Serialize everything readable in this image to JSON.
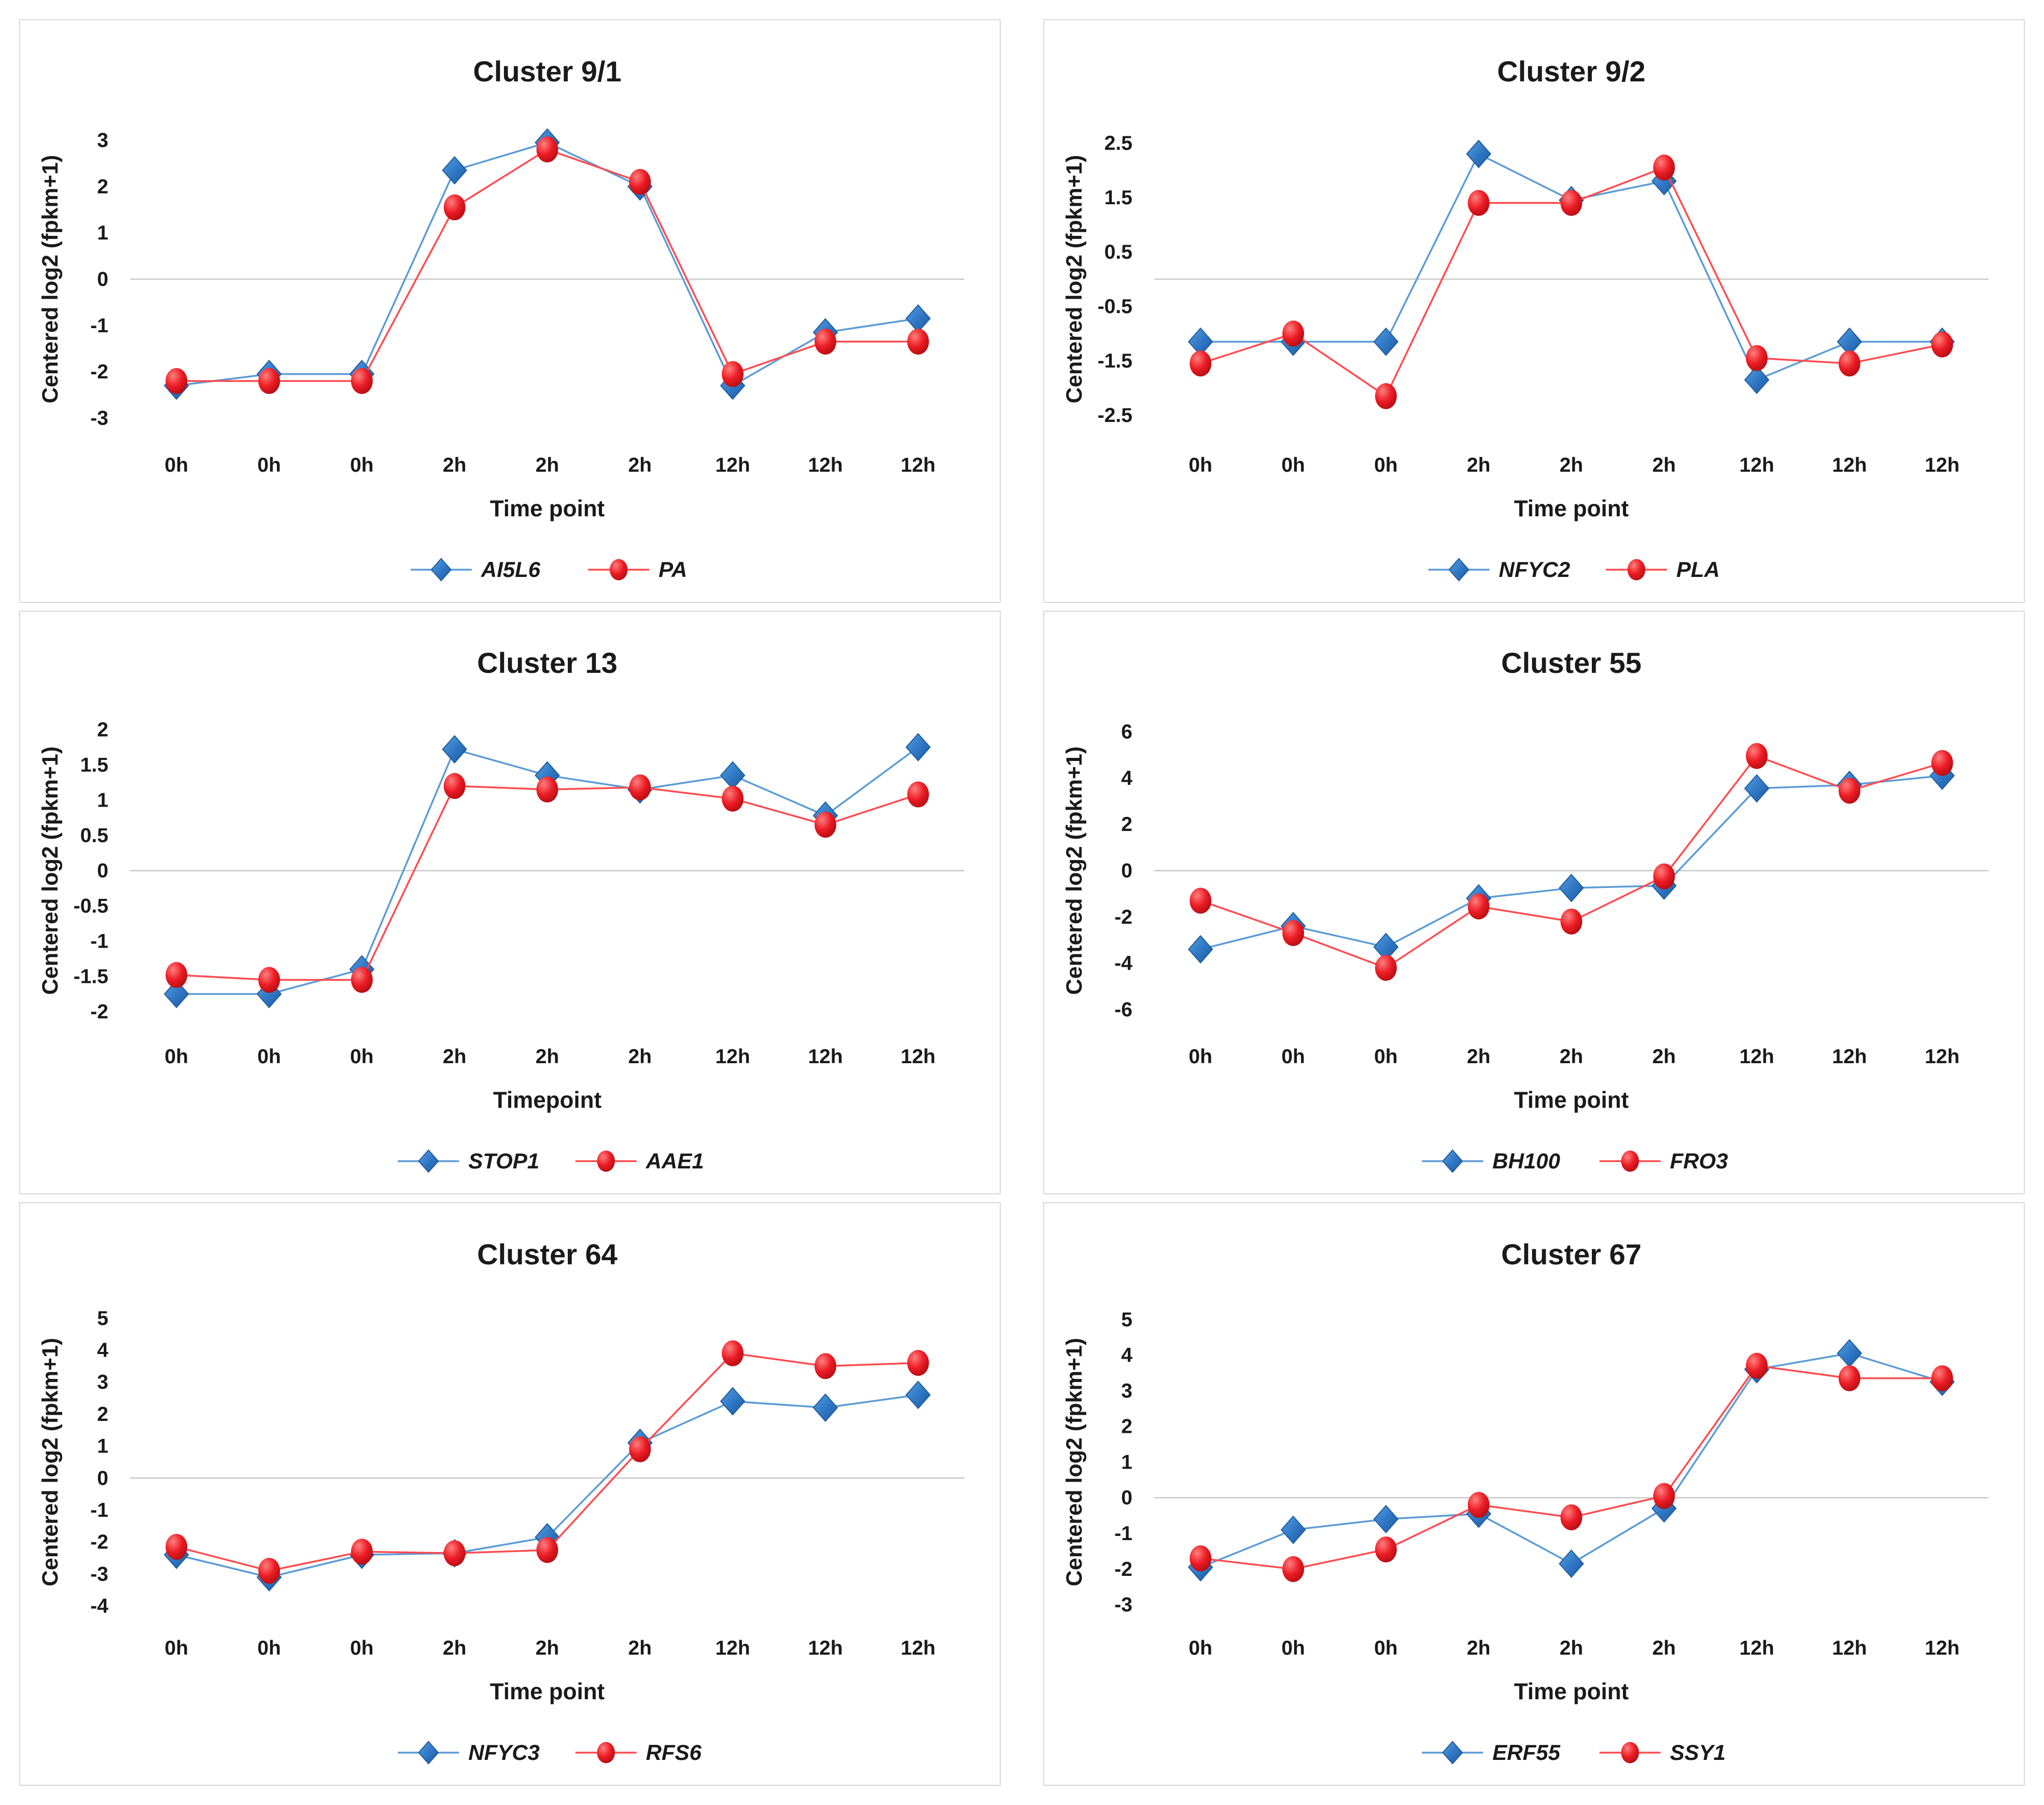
{
  "figure": {
    "background": "#ffffff",
    "panel_border_color": "#d9d9d9",
    "layout": "2x3-grid"
  },
  "colors": {
    "blue_line": "#5b9bd5",
    "blue_marker": "#2e75c3",
    "blue_marker_light": "#55a0e0",
    "blue_marker_dark": "#1f5c9e",
    "red_line": "#ff4b4f",
    "red_marker": "#ec1c24",
    "red_marker_light": "#ff8080",
    "red_marker_dark": "#b50d13",
    "zero_line": "#c8c8c8",
    "text": "#1a1a1a"
  },
  "chart_data": [
    {
      "type": "line",
      "title": "Cluster 9/1",
      "xlabel": "Time point",
      "ylabel": "Centered log2 (fpkm+1)",
      "categories": [
        "0h",
        "0h",
        "0h",
        "2h",
        "2h",
        "2h",
        "12h",
        "12h",
        "12h"
      ],
      "yticks": [
        3,
        2,
        1,
        0,
        -1,
        -2,
        -3
      ],
      "ylim": [
        -3.35,
        3.35
      ],
      "grid": "zero-line-only",
      "legend_position": "bottom",
      "series": [
        {
          "name": "AI5L6",
          "marker": "diamond",
          "values": [
            -2.3,
            -2.05,
            -2.05,
            2.35,
            2.95,
            2.0,
            -2.3,
            -1.15,
            -0.85
          ]
        },
        {
          "name": "PA",
          "marker": "circle",
          "values": [
            -2.2,
            -2.2,
            -2.2,
            1.55,
            2.8,
            2.1,
            -2.05,
            -1.35,
            -1.35
          ]
        }
      ]
    },
    {
      "type": "line",
      "title": "Cluster 9/2",
      "xlabel": "Time point",
      "ylabel": "Centered log2 (fpkm+1)",
      "categories": [
        "0h",
        "0h",
        "0h",
        "2h",
        "2h",
        "2h",
        "12h",
        "12h",
        "12h"
      ],
      "yticks": [
        2.5,
        1.5,
        0.5,
        -0.5,
        -1.5,
        -2.5
      ],
      "ylim": [
        -2.85,
        2.85
      ],
      "grid": "zero-line-only",
      "legend_position": "bottom",
      "series": [
        {
          "name": "NFYC2",
          "marker": "diamond",
          "values": [
            -1.15,
            -1.15,
            -1.15,
            2.3,
            1.45,
            1.8,
            -1.85,
            -1.15,
            -1.15
          ]
        },
        {
          "name": "PLA",
          "marker": "circle",
          "values": [
            -1.55,
            -1.0,
            -2.15,
            1.4,
            1.4,
            2.05,
            -1.45,
            -1.55,
            -1.2
          ]
        }
      ]
    },
    {
      "type": "line",
      "title": "Cluster 13",
      "xlabel": "Timepoint",
      "ylabel": "Centered log2 (fpkm+1)",
      "categories": [
        "0h",
        "0h",
        "0h",
        "2h",
        "2h",
        "2h",
        "12h",
        "12h",
        "12h"
      ],
      "yticks": [
        2,
        1.5,
        1,
        0.5,
        0,
        -0.5,
        -1,
        -1.5,
        -2
      ],
      "ylim": [
        -2.2,
        2.2
      ],
      "grid": "zero-line-only",
      "legend_position": "bottom",
      "series": [
        {
          "name": "STOP1",
          "marker": "diamond",
          "values": [
            -1.75,
            -1.75,
            -1.4,
            1.72,
            1.35,
            1.15,
            1.35,
            0.78,
            1.75
          ]
        },
        {
          "name": "AAE1",
          "marker": "circle",
          "values": [
            -1.48,
            -1.55,
            -1.55,
            1.2,
            1.15,
            1.18,
            1.02,
            0.65,
            1.08
          ]
        }
      ]
    },
    {
      "type": "line",
      "title": "Cluster 55",
      "xlabel": "Time point",
      "ylabel": "Centered log2 (fpkm+1)",
      "categories": [
        "0h",
        "0h",
        "0h",
        "2h",
        "2h",
        "2h",
        "12h",
        "12h",
        "12h"
      ],
      "yticks": [
        6,
        4,
        2,
        0,
        -2,
        -4,
        -6
      ],
      "ylim": [
        -6.7,
        6.7
      ],
      "grid": "zero-line-only",
      "legend_position": "bottom",
      "series": [
        {
          "name": "BH100",
          "marker": "diamond",
          "values": [
            -3.4,
            -2.4,
            -3.3,
            -1.2,
            -0.75,
            -0.65,
            3.55,
            3.7,
            4.1
          ]
        },
        {
          "name": "FRO3",
          "marker": "circle",
          "values": [
            -1.3,
            -2.7,
            -4.2,
            -1.55,
            -2.2,
            -0.25,
            4.95,
            3.45,
            4.65
          ]
        }
      ]
    },
    {
      "type": "line",
      "title": "Cluster 64",
      "xlabel": "Time point",
      "ylabel": "Centered log2 (fpkm+1)",
      "categories": [
        "0h",
        "0h",
        "0h",
        "2h",
        "2h",
        "2h",
        "12h",
        "12h",
        "12h"
      ],
      "yticks": [
        5,
        4,
        3,
        2,
        1,
        0,
        -1,
        -2,
        -3,
        -4
      ],
      "ylim": [
        -4.35,
        5.35
      ],
      "grid": "zero-line-only",
      "legend_position": "bottom",
      "series": [
        {
          "name": "NFYC3",
          "marker": "diamond",
          "values": [
            -2.4,
            -3.1,
            -2.4,
            -2.35,
            -1.85,
            1.1,
            2.4,
            2.2,
            2.6
          ]
        },
        {
          "name": "RFS6",
          "marker": "circle",
          "values": [
            -2.15,
            -2.9,
            -2.3,
            -2.35,
            -2.25,
            0.9,
            3.9,
            3.5,
            3.6
          ]
        }
      ]
    },
    {
      "type": "line",
      "title": "Cluster 67",
      "xlabel": "Time point",
      "ylabel": "Centered log2 (fpkm+1)",
      "categories": [
        "0h",
        "0h",
        "0h",
        "2h",
        "2h",
        "2h",
        "12h",
        "12h",
        "12h"
      ],
      "yticks": [
        5,
        4,
        3,
        2,
        1,
        0,
        -1,
        -2,
        -3
      ],
      "ylim": [
        -3.35,
        5.35
      ],
      "grid": "zero-line-only",
      "legend_position": "bottom",
      "series": [
        {
          "name": "ERF55",
          "marker": "diamond",
          "values": [
            -1.95,
            -0.9,
            -0.6,
            -0.45,
            -1.85,
            -0.3,
            3.6,
            4.05,
            3.25
          ]
        },
        {
          "name": "SSY1",
          "marker": "circle",
          "values": [
            -1.7,
            -2.0,
            -1.45,
            -0.2,
            -0.55,
            0.05,
            3.7,
            3.35,
            3.35
          ]
        }
      ]
    }
  ]
}
